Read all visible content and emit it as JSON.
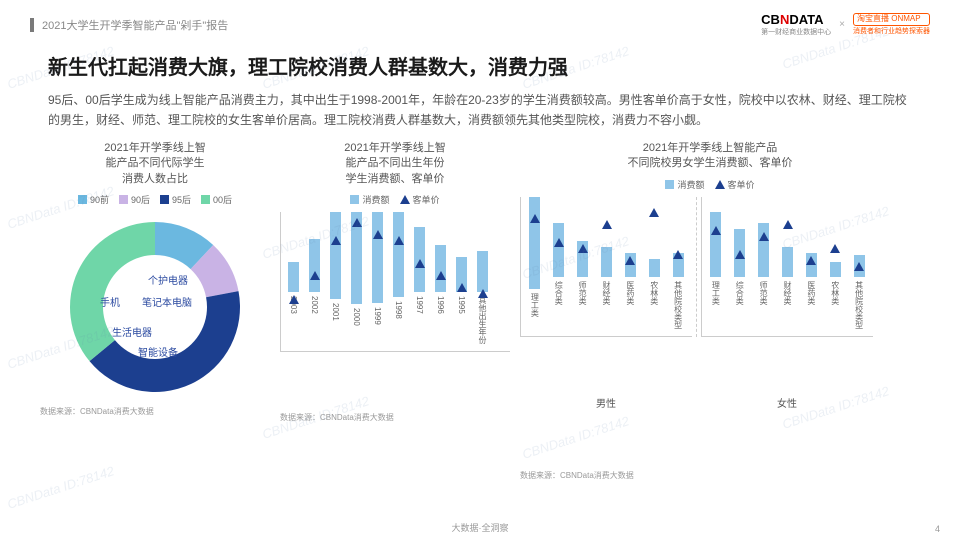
{
  "header": {
    "report": "2021大学生开学季智能产品\"剁手\"报告"
  },
  "logos": {
    "cbn_sub": "第一财经商业数据中心",
    "tb": "淘宝直播 ONMAP",
    "tb_sub": "消费者和行业趋势探索器"
  },
  "title": "新生代扛起消费大旗，理工院校消费人群基数大，消费力强",
  "desc": "95后、00后学生成为线上智能产品消费主力，其中出生于1998-2001年，年龄在20-23岁的学生消费额较高。男性客单价高于女性，院校中以农林、财经、理工院校的男生，财经、师范、理工院校的女生客单价居高。理工院校消费人群基数大，消费额领先其他类型院校，消费力不容小觑。",
  "chart1": {
    "title": "2021年开学季线上智\n能产品不同代际学生\n消费人数占比",
    "legend": [
      {
        "label": "90前",
        "color": "#6bb8e0"
      },
      {
        "label": "90后",
        "color": "#c9b3e5"
      },
      {
        "label": "95后",
        "color": "#1c3f8f"
      },
      {
        "label": "00后",
        "color": "#6fd6a8"
      }
    ],
    "slices": [
      {
        "pct": 12,
        "color": "#6bb8e0"
      },
      {
        "pct": 10,
        "color": "#c9b3e5"
      },
      {
        "pct": 42,
        "color": "#1c3f8f"
      },
      {
        "pct": 36,
        "color": "#6fd6a8"
      }
    ],
    "inner_labels": [
      "个护电器",
      "手机",
      "笔记本电脑",
      "生活电器",
      "智能设备"
    ],
    "source": "数据来源：CBNData消费大数据"
  },
  "chart2": {
    "title": "2021年开学季线上智\n能产品不同出生年份\n学生消费额、客单价",
    "legend_bar": {
      "label": "消费额",
      "color": "#8fc5e8"
    },
    "legend_tri": {
      "label": "客单价",
      "color": "#1c3f8f"
    },
    "categories": [
      "2003",
      "2002",
      "2001",
      "2000",
      "1999",
      "1998",
      "1997",
      "1996",
      "1995",
      "其他出生年份"
    ],
    "bar_values": [
      25,
      45,
      85,
      100,
      95,
      80,
      55,
      40,
      30,
      35
    ],
    "tri_values": [
      40,
      60,
      90,
      105,
      95,
      90,
      70,
      60,
      50,
      45
    ],
    "bar_color": "#8fc5e8",
    "tri_color": "#1c3f8f",
    "source": "数据来源：CBNData消费大数据"
  },
  "chart3": {
    "title": "2021年开学季线上智能产品\n不同院校男女学生消费额、客单价",
    "legend_bar": {
      "label": "消费额",
      "color": "#8fc5e8"
    },
    "legend_tri": {
      "label": "客单价",
      "color": "#1c3f8f"
    },
    "groups": [
      {
        "name": "男性",
        "categories": [
          "理工类",
          "综合类",
          "师范类",
          "财经类",
          "医药类",
          "农林类",
          "其他院校类型"
        ],
        "bar_values": [
          100,
          45,
          30,
          25,
          20,
          15,
          20
        ],
        "tri_values": [
          95,
          75,
          70,
          90,
          60,
          100,
          65
        ]
      },
      {
        "name": "女性",
        "categories": [
          "理工类",
          "综合类",
          "师范类",
          "财经类",
          "医药类",
          "农林类",
          "其他院校类型"
        ],
        "bar_values": [
          55,
          40,
          45,
          25,
          20,
          12,
          18
        ],
        "tri_values": [
          85,
          65,
          80,
          90,
          60,
          70,
          55
        ]
      }
    ],
    "bar_color": "#8fc5e8",
    "tri_color": "#1c3f8f",
    "source": "数据来源：CBNData消费大数据"
  },
  "footer": "大数据·全洞察",
  "page": "4",
  "watermark": "CBNData ID:78142"
}
